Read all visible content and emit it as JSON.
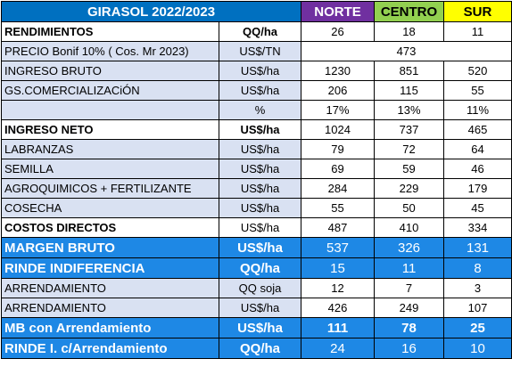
{
  "header": {
    "title": "GIRASOL 2022/2023",
    "columns": [
      "NORTE",
      "CENTRO",
      "SUR"
    ]
  },
  "rows": [
    {
      "label": "RENDIMIENTOS",
      "unit": "QQ/ha",
      "values": [
        "26",
        "18",
        "11"
      ]
    },
    {
      "label": "PRECIO  Bonif 10% ( Cos. Mr 2023)",
      "unit": "US$/TN",
      "merged": "473"
    },
    {
      "label": "INGRESO BRUTO",
      "unit": "US$/ha",
      "values": [
        "1230",
        "851",
        "520"
      ]
    },
    {
      "label": "GS.COMERCIALIZACiÓN",
      "unit": "US$/ha",
      "values": [
        "206",
        "115",
        "55"
      ]
    },
    {
      "label": "",
      "unit": "%",
      "values": [
        "17%",
        "13%",
        "11%"
      ]
    },
    {
      "label": "INGRESO NETO",
      "unit": "US$/ha",
      "values": [
        "1024",
        "737",
        "465"
      ]
    },
    {
      "label": "LABRANZAS",
      "unit": "US$/ha",
      "values": [
        "79",
        "72",
        "64"
      ]
    },
    {
      "label": "SEMILLA",
      "unit": "US$/ha",
      "values": [
        "69",
        "59",
        "46"
      ]
    },
    {
      "label": "AGROQUIMICOS + FERTILIZANTE",
      "unit": "US$/ha",
      "values": [
        "284",
        "229",
        "179"
      ]
    },
    {
      "label": "COSECHA",
      "unit": "US$/ha",
      "values": [
        "55",
        "50",
        "45"
      ]
    },
    {
      "label": "COSTOS DIRECTOS",
      "unit": "US$/ha",
      "values": [
        "487",
        "410",
        "334"
      ]
    },
    {
      "label": "MARGEN BRUTO",
      "unit": "US$/ha",
      "values": [
        "537",
        "326",
        "131"
      ]
    },
    {
      "label": "RINDE INDIFERENCIA",
      "unit": "QQ/ha",
      "values": [
        "15",
        "11",
        "8"
      ]
    },
    {
      "label": "ARRENDAMIENTO",
      "unit": "QQ soja",
      "values": [
        "12",
        "7",
        "3"
      ]
    },
    {
      "label": "ARRENDAMIENTO",
      "unit": "US$/ha",
      "values": [
        "426",
        "249",
        "107"
      ]
    },
    {
      "label": "MB con Arrendamiento",
      "unit": "US$/ha",
      "values": [
        "111",
        "78",
        "25"
      ]
    },
    {
      "label": "RINDE I. c/Arrendamiento",
      "unit": "QQ/ha",
      "values": [
        "24",
        "16",
        "10"
      ]
    }
  ]
}
